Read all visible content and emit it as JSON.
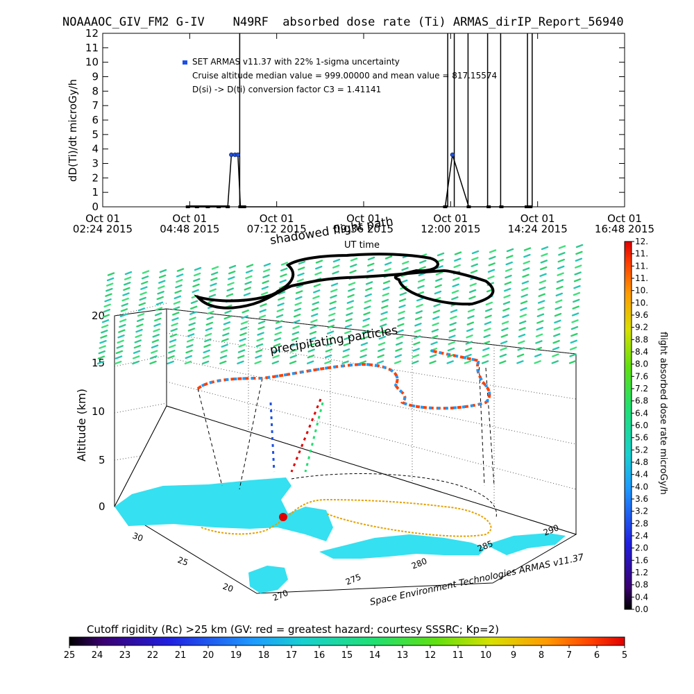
{
  "header": {
    "title": "NOAAAOC_GIV_FM2 G-IV    N49RF  absorbed dose rate (Ti) ARMAS_dirIP_Report_56940"
  },
  "chart_data": [
    {
      "type": "line",
      "ylabel": "dD(Ti)/dt microGy/h",
      "xlabel": "UT time",
      "ylim": [
        0,
        12
      ],
      "yticks": [
        "0",
        "1",
        "2",
        "3",
        "4",
        "5",
        "6",
        "7",
        "8",
        "9",
        "10",
        "11",
        "12"
      ],
      "xticks": [
        {
          "line1": "Oct 01",
          "line2": "02:24 2015"
        },
        {
          "line1": "Oct 01",
          "line2": "04:48 2015"
        },
        {
          "line1": "Oct 01",
          "line2": "07:12 2015"
        },
        {
          "line1": "Oct 01",
          "line2": "09:36 2015"
        },
        {
          "line1": "Oct 01",
          "line2": "12:00 2015"
        },
        {
          "line1": "Oct 01",
          "line2": "14:24 2015"
        },
        {
          "line1": "Oct 01",
          "line2": "16:48 2015"
        }
      ],
      "xrange_hours": [
        2.4,
        16.8
      ],
      "legend": {
        "entry": "SET ARMAS v11.37 with 22% 1-sigma uncertainty",
        "stat1": "Cruise altitude median value = 999.00000 and mean value = 817.15574",
        "stat2": "D(si) -> D(ti) conversion factor C3 = 1.41141",
        "marker_color": "#1e50e6"
      },
      "series": [
        {
          "points": [
            {
              "x": 4.75,
              "y": 0
            },
            {
              "x": 5.0,
              "y": 0
            },
            {
              "x": 5.3,
              "y": 0
            },
            {
              "x": 5.6,
              "y": 0
            },
            {
              "x": 5.85,
              "y": 0
            },
            {
              "x": 5.95,
              "y": 3.6
            },
            {
              "x": 6.05,
              "y": 3.6
            },
            {
              "x": 6.13,
              "y": 3.6
            },
            {
              "x": 6.2,
              "y": 0
            },
            {
              "x": 6.3,
              "y": 0
            },
            {
              "x": 11.85,
              "y": 0
            },
            {
              "x": 12.05,
              "y": 3.6
            },
            {
              "x": 12.5,
              "y": 0
            },
            {
              "x": 13.05,
              "y": 0
            },
            {
              "x": 13.4,
              "y": 0
            },
            {
              "x": 14.1,
              "y": 0
            },
            {
              "x": 14.2,
              "y": 0
            }
          ],
          "spikes_above_12": [
            6.18,
            11.92,
            12.1,
            12.48,
            13.02,
            13.38,
            14.12,
            14.25
          ]
        }
      ]
    },
    {
      "type": "3d-trajectory-map",
      "zlabel": "Altitude (km)",
      "zticks": [
        "0",
        "5",
        "10",
        "15",
        "20"
      ],
      "lat_ticks": [
        "30",
        "25",
        "20"
      ],
      "lon_ticks": [
        "270",
        "275",
        "280",
        "285",
        "290"
      ],
      "annotations": [
        "precipitating particles",
        "shadowed flight path"
      ],
      "credit": "Space Environment Technologies ARMAS v11.37"
    },
    {
      "type": "colorbar",
      "label": "flight absorbed dose rate microGy/h",
      "ticks": [
        "0.0",
        "0.4",
        "0.8",
        "1.2",
        "1.6",
        "2.0",
        "2.4",
        "2.8",
        "3.2",
        "3.6",
        "4.0",
        "4.4",
        "4.8",
        "5.2",
        "5.6",
        "6.0",
        "6.4",
        "6.8",
        "7.2",
        "7.6",
        "8.0",
        "8.4",
        "8.8",
        "9.2",
        "9.6",
        "10.",
        "10.",
        "11.",
        "11.",
        "11.",
        "12."
      ]
    },
    {
      "type": "colorbar",
      "label": "Cutoff rigidity (Rc) >25 km (GV: red = greatest hazard; courtesy SSSRC; Kp=2)",
      "ticks": [
        "25",
        "24",
        "23",
        "22",
        "21",
        "20",
        "19",
        "18",
        "17",
        "16",
        "15",
        "14",
        "13",
        "12",
        "11",
        "10",
        "9",
        "8",
        "7",
        "6",
        "5"
      ]
    }
  ],
  "colors": {
    "rainbow": [
      "#000000",
      "#3a0070",
      "#2020e0",
      "#1e9aff",
      "#18d0d0",
      "#20e070",
      "#60e010",
      "#d8e000",
      "#ff9a00",
      "#ff4000",
      "#e00000"
    ],
    "grid_dots": "#2ed16a",
    "land": "#35e0f0",
    "flight_path": "#000000"
  }
}
